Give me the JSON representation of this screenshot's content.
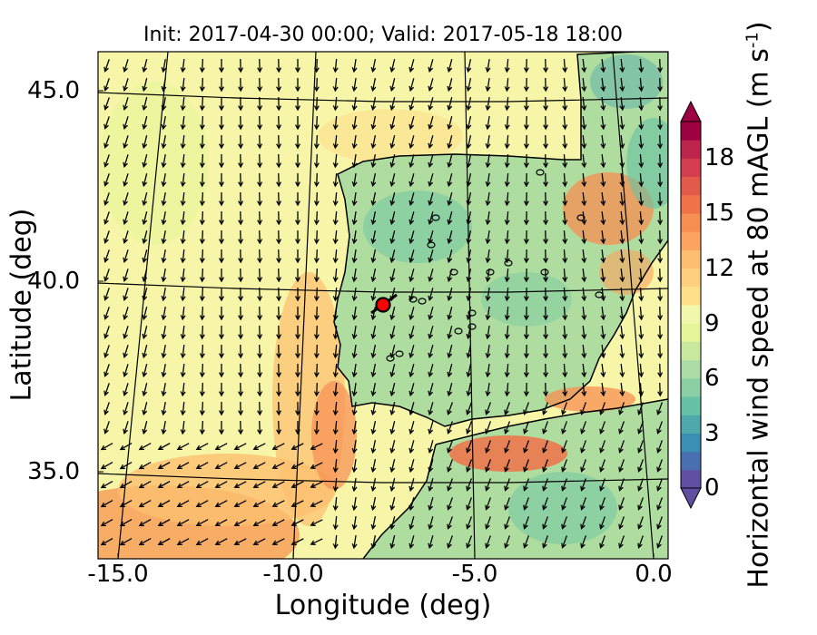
{
  "title": "Init: 2017-04-30 00:00; Valid: 2017-05-18 18:00",
  "x_label": "Longitude (deg)",
  "y_label": "Latitude (deg)",
  "colorbar": {
    "label_main": "Horizontal wind speed at 80 mAGL (m s",
    "label_exp": "-1",
    "label_close": ")",
    "ticks": [
      "0",
      "3",
      "6",
      "9",
      "12",
      "15",
      "18"
    ],
    "min": 0,
    "max": 20,
    "extend": "both",
    "colors": [
      "#5e4fa2",
      "#4a6fb0",
      "#3a8fb5",
      "#4fa8ab",
      "#66c2a5",
      "#8ccfa4",
      "#abdda4",
      "#c8e99e",
      "#e6f598",
      "#f2f8ab",
      "#fee08b",
      "#fed07e",
      "#fdbf6f",
      "#fca45f",
      "#f88d52",
      "#f07249",
      "#e25a49",
      "#d53e4f",
      "#be254d",
      "#9e0142"
    ]
  },
  "map": {
    "x_ticks": [
      "-15.0",
      "-10.0",
      "-5.0",
      "0.0"
    ],
    "y_ticks": [
      "45.0",
      "40.0",
      "35.0"
    ],
    "site_marker": {
      "label": "",
      "lon": -7.6,
      "lat": 39.3,
      "color": "#ff0000"
    },
    "land_color": "#aedd9f",
    "ocean_color": "#f7f6a8",
    "arrow_color": "#000000",
    "grid_color": "#000000"
  }
}
